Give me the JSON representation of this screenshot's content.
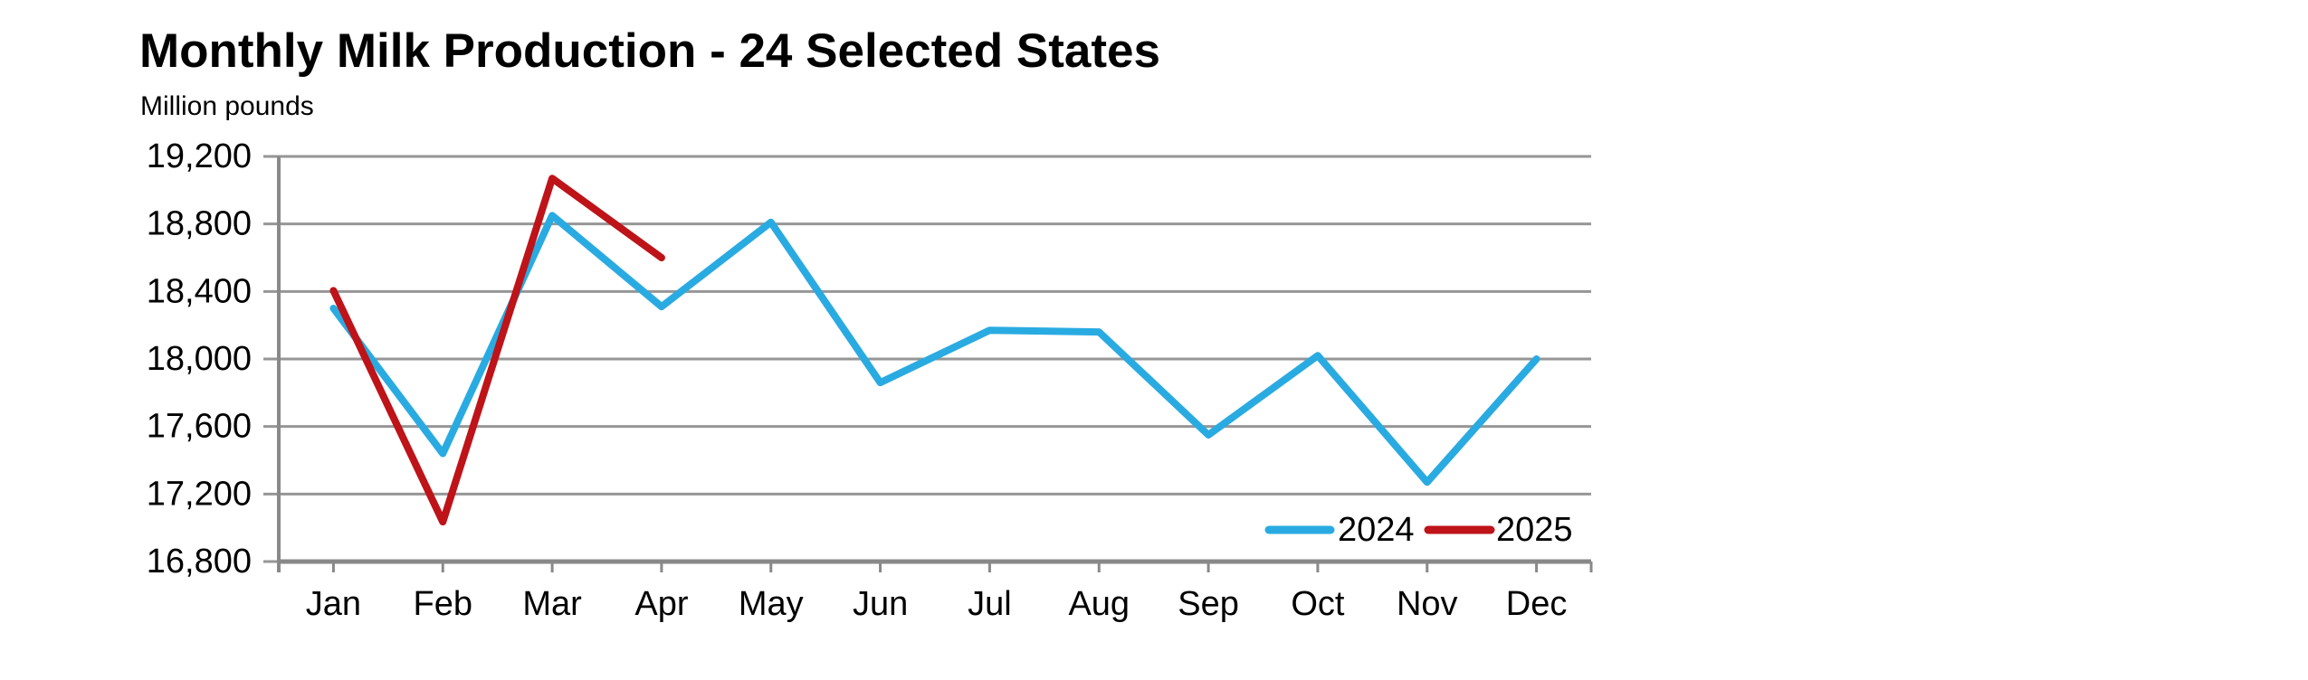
{
  "chart_data": {
    "type": "line",
    "title": "Monthly Milk Production - 24 Selected States",
    "units_label": "Million pounds",
    "xlabel": "",
    "ylabel": "Million pounds",
    "categories": [
      "Jan",
      "Feb",
      "Mar",
      "Apr",
      "May",
      "Jun",
      "Jul",
      "Aug",
      "Sep",
      "Oct",
      "Nov",
      "Dec"
    ],
    "series": [
      {
        "name": "2024",
        "color": "#29ABE2",
        "values": [
          18300,
          17440,
          18850,
          18310,
          18810,
          17860,
          18170,
          18160,
          17550,
          18020,
          17270,
          18000
        ]
      },
      {
        "name": "2025",
        "color": "#BE1318",
        "values": [
          18405,
          17035,
          19070,
          18600
        ]
      }
    ],
    "ylim": [
      16800,
      19200
    ],
    "ytick_step": 400,
    "ytick_labels": [
      "16,800",
      "17,200",
      "17,600",
      "18,000",
      "18,400",
      "18,800",
      "19,200"
    ],
    "grid": true,
    "legend_position": "inside-bottom-right",
    "colors": {
      "gridline": "#969696",
      "axis": "#898989",
      "text": "#000000",
      "background": "#ffffff"
    }
  }
}
